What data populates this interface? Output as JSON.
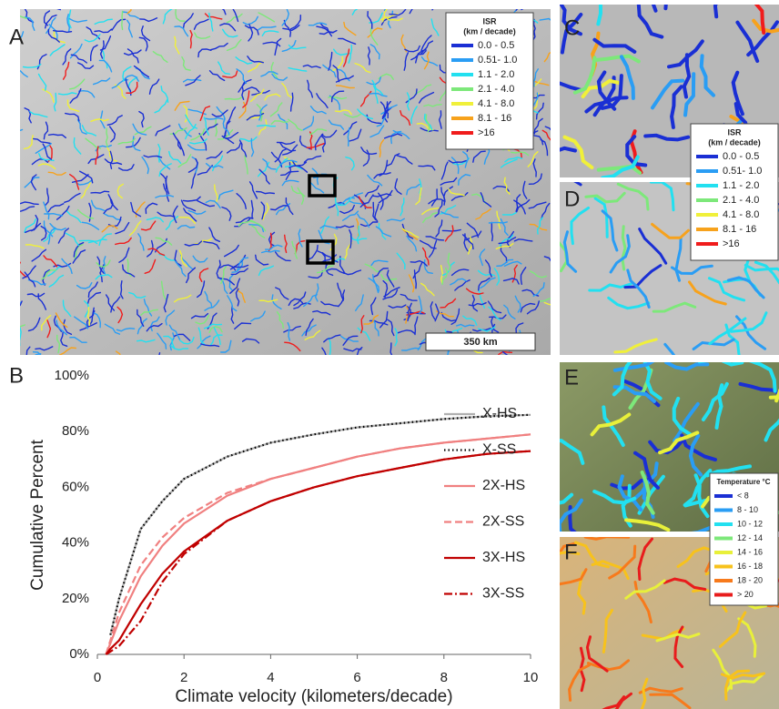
{
  "panel_labels": [
    "A",
    "B",
    "C",
    "D",
    "E",
    "F"
  ],
  "isr_legend": {
    "title": "ISR",
    "subtitle": "(km / decade)",
    "items": [
      {
        "label": "0.0 - 0.5",
        "color": "#1a2fd4"
      },
      {
        "label": "0.51- 1.0",
        "color": "#2a9df4"
      },
      {
        "label": "1.1 - 2.0",
        "color": "#22e0f0"
      },
      {
        "label": "2.1 - 4.0",
        "color": "#7de87a"
      },
      {
        "label": "4.1 - 8.0",
        "color": "#f0f03a"
      },
      {
        "label": "8.1 - 16",
        "color": "#f7a21c"
      },
      {
        "label": ">16",
        "color": "#f01c1c"
      }
    ]
  },
  "temperature_legend": {
    "title": "Temperature °C",
    "items": [
      {
        "label": "< 8",
        "color": "#1a2fd4"
      },
      {
        "label": "8 - 10",
        "color": "#2a9df4"
      },
      {
        "label": "10 - 12",
        "color": "#22e0f0"
      },
      {
        "label": "12 - 14",
        "color": "#7de87a"
      },
      {
        "label": "14 - 16",
        "color": "#e8f03a"
      },
      {
        "label": "16 - 18",
        "color": "#f7c21c"
      },
      {
        "label": "18 - 20",
        "color": "#f77a1c"
      },
      {
        "label": "> 20",
        "color": "#e81c1c"
      }
    ]
  },
  "scale_bar": "350 km",
  "chart_data": {
    "type": "line",
    "xlabel": "Climate velocity (kilometers/decade)",
    "ylabel": "Cumulative Percent",
    "x": [
      0.2,
      0.3,
      0.5,
      1,
      1.5,
      2,
      3,
      4,
      5,
      6,
      7,
      8,
      9,
      10
    ],
    "xlim": [
      0,
      10
    ],
    "xticks": [
      0,
      2,
      4,
      6,
      8,
      10
    ],
    "ylim": [
      0,
      100
    ],
    "yticks": [
      {
        "value": 0,
        "label": "0%"
      },
      {
        "value": 20,
        "label": "20%"
      },
      {
        "value": 40,
        "label": "40%"
      },
      {
        "value": 60,
        "label": "60%"
      },
      {
        "value": 80,
        "label": "80%"
      },
      {
        "value": 100,
        "label": "100%"
      }
    ],
    "series": [
      {
        "name": "X-HS",
        "color": "#b0b0b0",
        "style": "solid",
        "values": [
          null,
          7,
          20,
          45,
          55,
          63,
          71,
          76,
          79,
          81.5,
          83,
          84.5,
          85.5,
          86
        ]
      },
      {
        "name": "X-SS",
        "color": "#000000",
        "style": "dotted",
        "values": [
          null,
          7,
          20,
          45,
          55,
          63,
          71,
          76,
          79,
          81.5,
          83,
          84.5,
          85.5,
          86
        ]
      },
      {
        "name": "2X-HS",
        "color": "#f08080",
        "style": "solid",
        "values": [
          0,
          4,
          12,
          28,
          39,
          47,
          57,
          63,
          67,
          71,
          74,
          76,
          77.5,
          79
        ]
      },
      {
        "name": "2X-SS",
        "color": "#f08080",
        "style": "dashed",
        "values": [
          0,
          5,
          15,
          32,
          42,
          49,
          58,
          63,
          67,
          71,
          74,
          76,
          77.5,
          79
        ]
      },
      {
        "name": "3X-HS",
        "color": "#c00000",
        "style": "solid",
        "values": [
          0,
          2,
          5,
          18,
          29,
          37,
          48,
          55,
          60,
          64,
          67,
          70,
          72,
          73
        ]
      },
      {
        "name": "3X-SS",
        "color": "#c00000",
        "style": "dashdot",
        "values": [
          0,
          1,
          3,
          12,
          26,
          36,
          48,
          55,
          60,
          64,
          67,
          70,
          72,
          73
        ]
      }
    ],
    "legend": "right"
  }
}
